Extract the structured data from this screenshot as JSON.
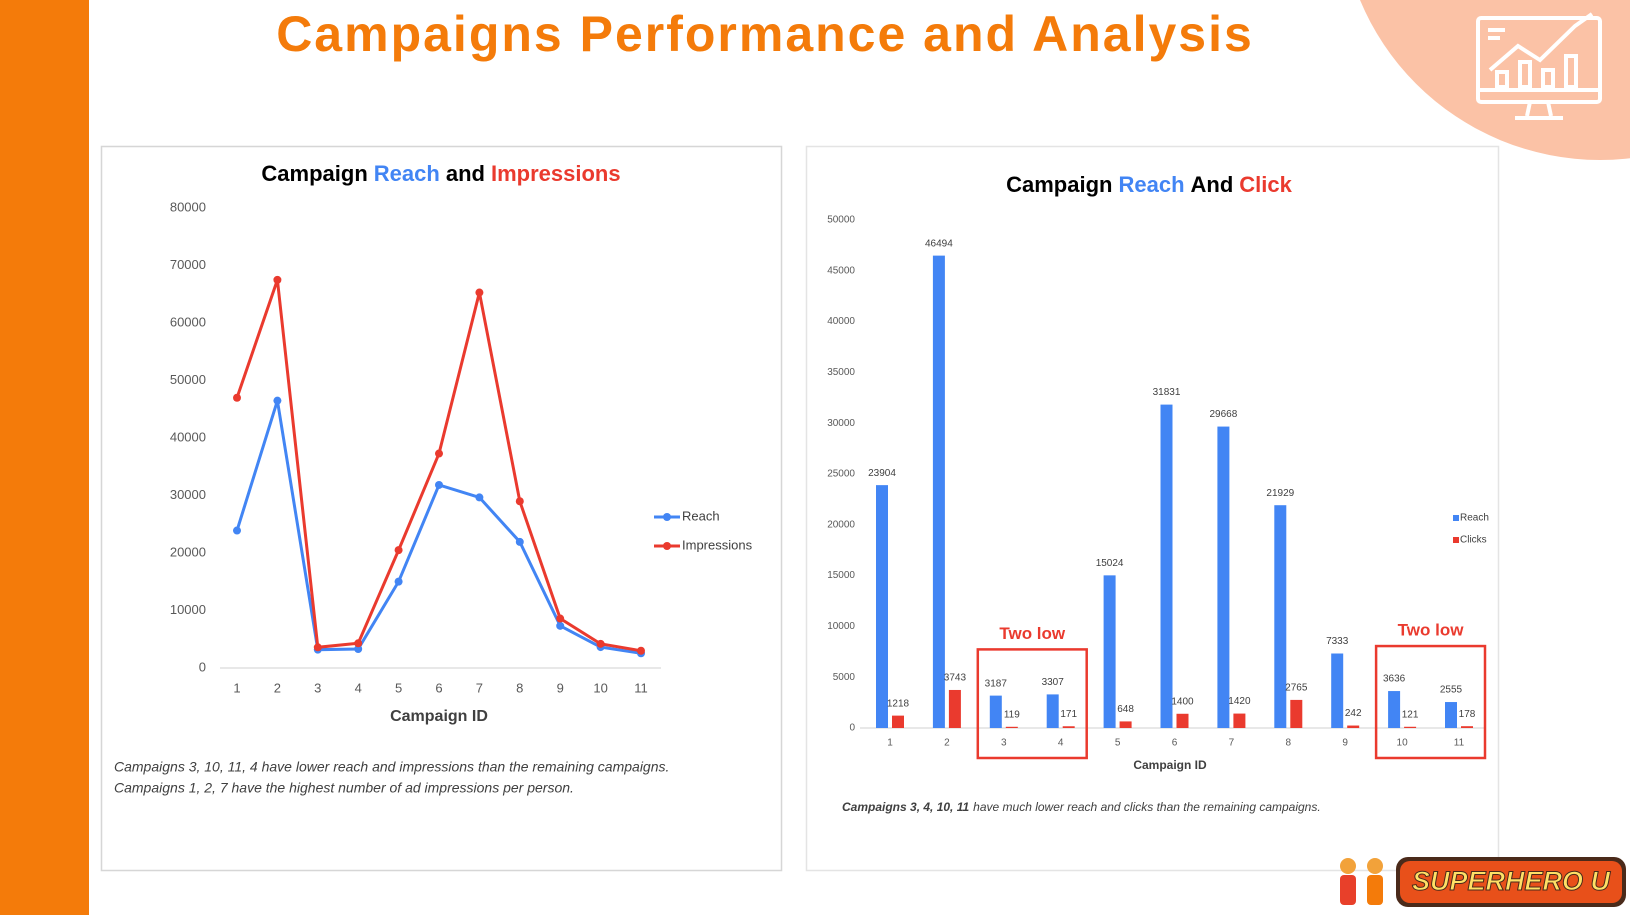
{
  "header": {
    "title": "Campaigns Performance and Analysis"
  },
  "chart_data": [
    {
      "type": "line",
      "title": [
        "Campaign",
        "Reach",
        "and",
        "Impressions"
      ],
      "title_colors": [
        "#000000",
        "#4285f4",
        "#000000",
        "#ea3a2e"
      ],
      "categories": [
        "1",
        "2",
        "3",
        "4",
        "5",
        "6",
        "7",
        "8",
        "9",
        "10",
        "11"
      ],
      "series": [
        {
          "name": "Reach",
          "color": "#4285f4",
          "values": [
            23904,
            46494,
            3187,
            3307,
            15024,
            31831,
            29668,
            21929,
            7333,
            3636,
            2555
          ]
        },
        {
          "name": "Impressions",
          "color": "#ea3a2e",
          "values": [
            47000,
            67500,
            3600,
            4300,
            20500,
            37300,
            65300,
            29000,
            8600,
            4200,
            3000
          ]
        }
      ],
      "ylim": [
        0,
        80000
      ],
      "yticks": [
        0,
        10000,
        20000,
        30000,
        40000,
        50000,
        60000,
        70000,
        80000
      ],
      "grid": false,
      "xlabel": "Campaign ID",
      "legend": "right",
      "caption": [
        "Campaigns 3, 10, 11, 4 have lower reach and impressions than the remaining campaigns.",
        "Campaigns 1, 2, 7 have the highest number of ad impressions per person."
      ]
    },
    {
      "type": "bar",
      "title": [
        "Campaign",
        "Reach",
        "And",
        "Click"
      ],
      "title_colors": [
        "#000000",
        "#4285f4",
        "#000000",
        "#ea3a2e"
      ],
      "categories": [
        "1",
        "2",
        "3",
        "4",
        "5",
        "6",
        "7",
        "8",
        "9",
        "10",
        "11"
      ],
      "series": [
        {
          "name": "Reach",
          "color": "#4285f4",
          "values": [
            23904,
            46494,
            3187,
            3307,
            15024,
            31831,
            29668,
            21929,
            7333,
            3636,
            2555
          ]
        },
        {
          "name": "Clicks",
          "color": "#ea3a2e",
          "values": [
            1218,
            3743,
            119,
            171,
            648,
            1400,
            1420,
            2765,
            242,
            121,
            178
          ]
        }
      ],
      "ylim": [
        0,
        50000
      ],
      "yticks": [
        0,
        5000,
        10000,
        15000,
        20000,
        25000,
        30000,
        35000,
        40000,
        45000,
        50000
      ],
      "grid": false,
      "xlabel": "Campaign ID",
      "legend": "right",
      "annotations": [
        {
          "text": "Two low",
          "span": [
            "3",
            "4"
          ],
          "color": "#ea3a2e"
        },
        {
          "text": "Two low",
          "span": [
            "10",
            "11"
          ],
          "color": "#ea3a2e"
        }
      ],
      "caption": [
        "Campaigns 3, 4, 10, 11",
        "have much lower reach and clicks than the remaining campaigns."
      ]
    }
  ],
  "logo": {
    "text": "SUPERHERO U"
  }
}
